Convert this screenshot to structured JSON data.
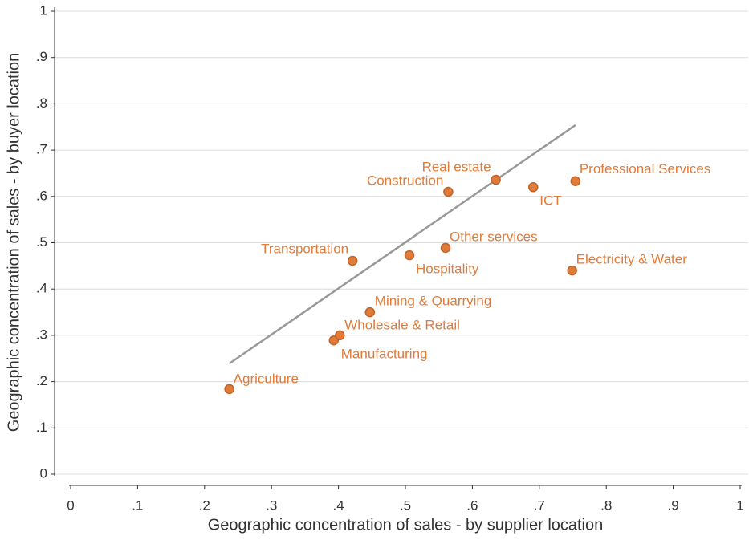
{
  "chart_data": {
    "type": "scatter",
    "xlabel": "Geographic concentration of sales - by supplier location",
    "ylabel": "Geographic concentration of sales - by buyer location",
    "xlim": [
      0,
      1
    ],
    "ylim": [
      0,
      1
    ],
    "xticks": [
      0,
      {
        "value": 0.1,
        "label": ".1"
      },
      {
        "value": 0.2,
        "label": ".2"
      },
      {
        "value": 0.3,
        "label": ".3"
      },
      {
        "value": 0.4,
        "label": ".4"
      },
      {
        "value": 0.5,
        "label": ".5"
      },
      {
        "value": 0.6,
        "label": ".6"
      },
      {
        "value": 0.7,
        "label": ".7"
      },
      {
        "value": 0.8,
        "label": ".8"
      },
      {
        "value": 0.9,
        "label": ".9"
      },
      1
    ],
    "yticks": [
      0,
      {
        "value": 0.1,
        "label": ".1"
      },
      {
        "value": 0.2,
        "label": ".2"
      },
      {
        "value": 0.3,
        "label": ".3"
      },
      {
        "value": 0.4,
        "label": ".4"
      },
      {
        "value": 0.5,
        "label": ".5"
      },
      {
        "value": 0.6,
        "label": ".6"
      },
      {
        "value": 0.7,
        "label": ".7"
      },
      {
        "value": 0.8,
        "label": ".8"
      },
      {
        "value": 0.9,
        "label": ".9"
      },
      1
    ],
    "grid": true,
    "color": "#e07b39",
    "line_color": "#999999",
    "labels": [
      "Agriculture",
      "Manufacturing",
      "Wholesale & Retail",
      "Mining & Quarrying",
      "Transportation",
      "Hospitality",
      "Other services",
      "Construction",
      "Real estate",
      "ICT",
      "Professional Services",
      "Electricity & Water"
    ],
    "x": [
      0.237,
      0.393,
      0.402,
      0.447,
      0.421,
      0.506,
      0.56,
      0.564,
      0.635,
      0.691,
      0.754,
      0.749
    ],
    "values": [
      0.184,
      0.289,
      0.3,
      0.35,
      0.461,
      0.473,
      0.489,
      0.61,
      0.636,
      0.62,
      0.633,
      0.44
    ],
    "fit_line": {
      "x": [
        0.237,
        0.754
      ],
      "values": [
        0.239,
        0.754
      ]
    }
  }
}
